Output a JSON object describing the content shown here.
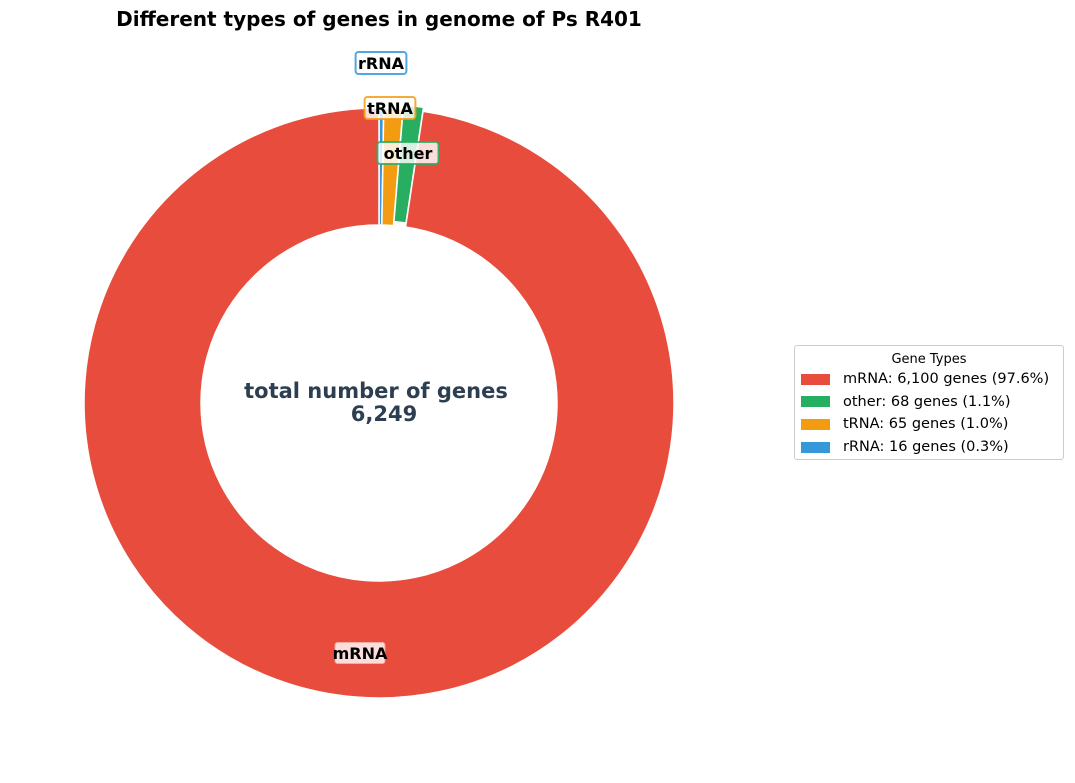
{
  "chart_data": {
    "type": "pie",
    "variant": "donut",
    "title": "Different types of genes in genome of Ps R401",
    "center_label": {
      "line1": "total number of genes",
      "line2": "6,249"
    },
    "total": 6249,
    "slices": [
      {
        "label": "mRNA",
        "value": 6100,
        "percent": 97.6,
        "color": "#e74c3c"
      },
      {
        "label": "other",
        "value": 68,
        "percent": 1.1,
        "color": "#27ae60"
      },
      {
        "label": "tRNA",
        "value": 65,
        "percent": 1.0,
        "color": "#f39c12"
      },
      {
        "label": "rRNA",
        "value": 16,
        "percent": 0.3,
        "color": "#3498db"
      }
    ],
    "legend": {
      "title": "Gene Types",
      "placement": "right",
      "entries": [
        "mRNA: 6,100 genes (97.6%)",
        "other: 68 genes (1.1%)",
        "tRNA: 65 genes (1.0%)",
        "rRNA: 16 genes (0.3%)"
      ]
    },
    "label_box_borders": {
      "mRNA": "#e74c3c",
      "other": "#27ae60",
      "tRNA": "#f39c12",
      "rRNA": "#3498db"
    }
  }
}
